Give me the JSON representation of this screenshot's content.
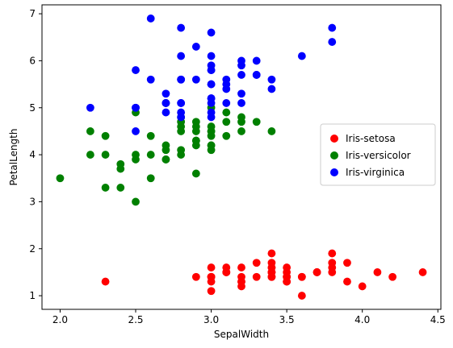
{
  "chart_data": {
    "type": "scatter",
    "title": "",
    "xlabel": "SepalWidth",
    "ylabel": "PetalLength",
    "xlim": [
      1.88,
      4.52
    ],
    "ylim": [
      0.71,
      7.19
    ],
    "xticks": [
      "2.0",
      "2.5",
      "3.0",
      "3.5",
      "4.0",
      "4.5"
    ],
    "yticks": [
      "1",
      "2",
      "3",
      "4",
      "5",
      "6",
      "7"
    ],
    "grid": false,
    "legend": "center-right",
    "series": [
      {
        "name": "Iris-setosa",
        "color": "#ff0000",
        "points": [
          [
            3.5,
            1.4
          ],
          [
            3.0,
            1.4
          ],
          [
            3.2,
            1.3
          ],
          [
            3.1,
            1.5
          ],
          [
            3.6,
            1.4
          ],
          [
            3.9,
            1.7
          ],
          [
            3.4,
            1.4
          ],
          [
            3.4,
            1.5
          ],
          [
            2.9,
            1.4
          ],
          [
            3.1,
            1.5
          ],
          [
            3.7,
            1.5
          ],
          [
            3.4,
            1.6
          ],
          [
            3.0,
            1.4
          ],
          [
            3.0,
            1.1
          ],
          [
            4.0,
            1.2
          ],
          [
            4.4,
            1.5
          ],
          [
            3.9,
            1.3
          ],
          [
            3.5,
            1.4
          ],
          [
            3.8,
            1.7
          ],
          [
            3.8,
            1.5
          ],
          [
            3.4,
            1.7
          ],
          [
            3.7,
            1.5
          ],
          [
            3.6,
            1.0
          ],
          [
            3.3,
            1.7
          ],
          [
            3.4,
            1.9
          ],
          [
            3.0,
            1.6
          ],
          [
            3.4,
            1.6
          ],
          [
            3.5,
            1.5
          ],
          [
            3.4,
            1.4
          ],
          [
            3.2,
            1.6
          ],
          [
            3.1,
            1.6
          ],
          [
            3.4,
            1.5
          ],
          [
            4.1,
            1.5
          ],
          [
            4.2,
            1.4
          ],
          [
            3.1,
            1.5
          ],
          [
            3.2,
            1.2
          ],
          [
            3.5,
            1.3
          ],
          [
            3.6,
            1.4
          ],
          [
            3.0,
            1.3
          ],
          [
            3.4,
            1.5
          ],
          [
            3.5,
            1.3
          ],
          [
            2.3,
            1.3
          ],
          [
            3.2,
            1.3
          ],
          [
            3.5,
            1.6
          ],
          [
            3.8,
            1.9
          ],
          [
            3.0,
            1.4
          ],
          [
            3.8,
            1.6
          ],
          [
            3.2,
            1.4
          ],
          [
            3.7,
            1.5
          ],
          [
            3.3,
            1.4
          ]
        ]
      },
      {
        "name": "Iris-versicolor",
        "color": "#008000",
        "points": [
          [
            3.2,
            4.7
          ],
          [
            3.2,
            4.5
          ],
          [
            3.1,
            4.9
          ],
          [
            2.3,
            4.0
          ],
          [
            2.8,
            4.6
          ],
          [
            2.8,
            4.5
          ],
          [
            3.3,
            4.7
          ],
          [
            2.4,
            3.3
          ],
          [
            2.9,
            4.6
          ],
          [
            2.7,
            3.9
          ],
          [
            2.0,
            3.5
          ],
          [
            3.0,
            4.2
          ],
          [
            2.2,
            4.0
          ],
          [
            2.9,
            4.7
          ],
          [
            2.9,
            3.6
          ],
          [
            3.1,
            4.4
          ],
          [
            3.0,
            4.5
          ],
          [
            2.7,
            4.1
          ],
          [
            2.2,
            4.5
          ],
          [
            2.5,
            3.9
          ],
          [
            3.2,
            4.8
          ],
          [
            2.8,
            4.0
          ],
          [
            2.5,
            4.9
          ],
          [
            2.8,
            4.7
          ],
          [
            2.9,
            4.3
          ],
          [
            3.0,
            4.4
          ],
          [
            2.8,
            4.8
          ],
          [
            3.0,
            5.0
          ],
          [
            2.9,
            4.5
          ],
          [
            2.6,
            3.5
          ],
          [
            2.4,
            3.8
          ],
          [
            2.4,
            3.7
          ],
          [
            2.7,
            3.9
          ],
          [
            2.7,
            5.1
          ],
          [
            3.0,
            4.5
          ],
          [
            3.4,
            4.5
          ],
          [
            3.1,
            4.7
          ],
          [
            2.3,
            4.4
          ],
          [
            3.0,
            4.1
          ],
          [
            2.5,
            4.0
          ],
          [
            2.6,
            4.4
          ],
          [
            3.0,
            4.6
          ],
          [
            2.6,
            4.0
          ],
          [
            2.3,
            3.3
          ],
          [
            2.7,
            4.2
          ],
          [
            3.0,
            4.2
          ],
          [
            2.9,
            4.2
          ],
          [
            2.9,
            4.3
          ],
          [
            2.5,
            3.0
          ],
          [
            2.8,
            4.1
          ]
        ]
      },
      {
        "name": "Iris-virginica",
        "color": "#0000ff",
        "points": [
          [
            3.3,
            6.0
          ],
          [
            2.7,
            5.1
          ],
          [
            3.0,
            5.9
          ],
          [
            2.9,
            5.6
          ],
          [
            3.0,
            5.8
          ],
          [
            3.0,
            6.6
          ],
          [
            2.5,
            4.5
          ],
          [
            2.9,
            6.3
          ],
          [
            2.5,
            5.8
          ],
          [
            3.6,
            6.1
          ],
          [
            3.2,
            5.1
          ],
          [
            2.7,
            5.3
          ],
          [
            3.0,
            5.5
          ],
          [
            2.5,
            5.0
          ],
          [
            2.8,
            5.1
          ],
          [
            3.2,
            5.3
          ],
          [
            3.0,
            5.5
          ],
          [
            3.8,
            6.7
          ],
          [
            2.6,
            6.9
          ],
          [
            2.2,
            5.0
          ],
          [
            3.2,
            5.7
          ],
          [
            2.8,
            4.9
          ],
          [
            2.8,
            6.7
          ],
          [
            2.7,
            4.9
          ],
          [
            3.3,
            5.7
          ],
          [
            3.2,
            6.0
          ],
          [
            2.8,
            4.8
          ],
          [
            3.0,
            4.9
          ],
          [
            2.8,
            5.6
          ],
          [
            3.0,
            5.8
          ],
          [
            2.8,
            6.1
          ],
          [
            3.8,
            6.4
          ],
          [
            2.8,
            5.6
          ],
          [
            2.8,
            5.1
          ],
          [
            2.6,
            5.6
          ],
          [
            3.0,
            6.1
          ],
          [
            3.4,
            5.6
          ],
          [
            3.1,
            5.5
          ],
          [
            3.0,
            4.8
          ],
          [
            3.1,
            5.4
          ],
          [
            3.1,
            5.6
          ],
          [
            3.1,
            5.1
          ],
          [
            2.7,
            5.1
          ],
          [
            3.2,
            5.9
          ],
          [
            3.3,
            5.7
          ],
          [
            3.0,
            5.2
          ],
          [
            2.5,
            5.0
          ],
          [
            3.0,
            5.2
          ],
          [
            3.4,
            5.4
          ],
          [
            3.0,
            5.1
          ]
        ]
      }
    ]
  }
}
